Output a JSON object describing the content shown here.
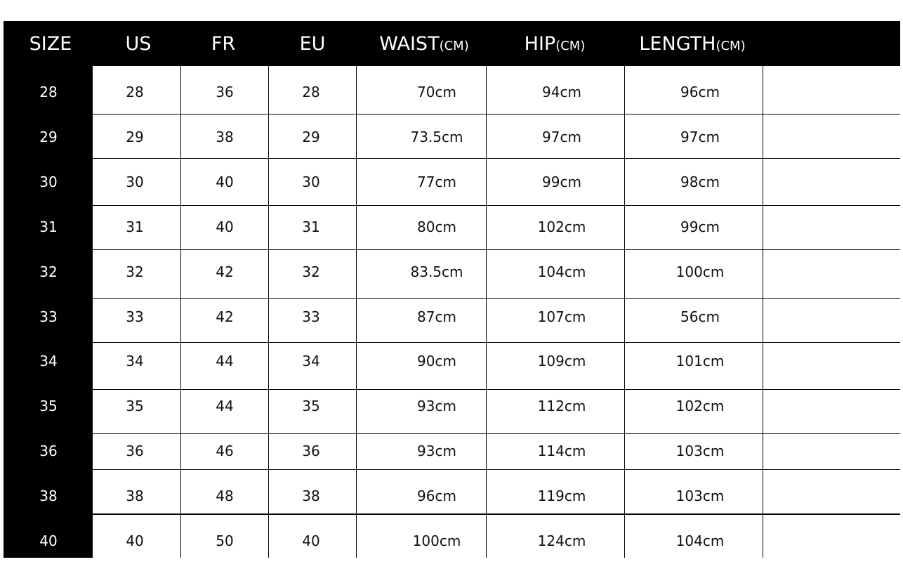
{
  "headers": [
    {
      "main": "SIZE",
      "unit": ""
    },
    {
      "main": "US",
      "unit": ""
    },
    {
      "main": "FR",
      "unit": ""
    },
    {
      "main": "EU",
      "unit": ""
    },
    {
      "main": "WAIST",
      "unit": "(CM)"
    },
    {
      "main": "HIP",
      "unit": "(CM)"
    },
    {
      "main": "LENGTH",
      "unit": "(CM)"
    }
  ],
  "rows": [
    [
      "28",
      "28",
      "36",
      "28",
      "70cm",
      "94cm",
      "96cm"
    ],
    [
      "29",
      "29",
      "38",
      "29",
      "73.5cm",
      "97cm",
      "97cm"
    ],
    [
      "30",
      "30",
      "40",
      "30",
      "77cm",
      "99cm",
      "98cm"
    ],
    [
      "31",
      "31",
      "40",
      "31",
      "80cm",
      "102cm",
      "99cm"
    ],
    [
      "32",
      "32",
      "42",
      "32",
      "83.5cm",
      "104cm",
      "100cm"
    ],
    [
      "33",
      "33",
      "42",
      "33",
      "87cm",
      "107cm",
      "56cm"
    ],
    [
      "34",
      "34",
      "44",
      "34",
      "90cm",
      "109cm",
      "101cm"
    ],
    [
      "35",
      "35",
      "44",
      "35",
      "93cm",
      "112cm",
      "102cm"
    ],
    [
      "36",
      "36",
      "46",
      "36",
      "93cm",
      "114cm",
      "103cm"
    ],
    [
      "38",
      "38",
      "48",
      "38",
      "96cm",
      "119cm",
      "103cm"
    ],
    [
      "40",
      "40",
      "50",
      "40",
      "100cm",
      "124cm",
      "104cm"
    ]
  ]
}
